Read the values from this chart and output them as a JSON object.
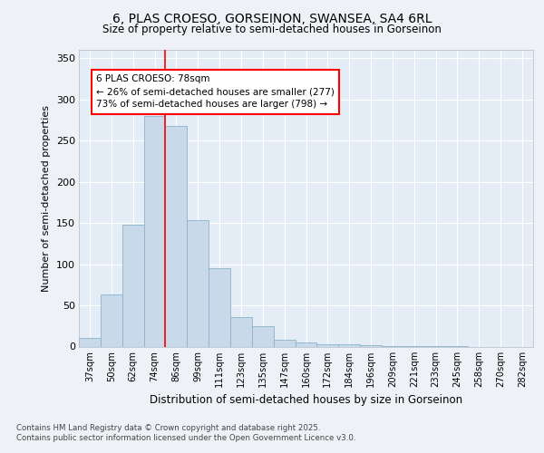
{
  "title_line1": "6, PLAS CROESO, GORSEINON, SWANSEA, SA4 6RL",
  "title_line2": "Size of property relative to semi-detached houses in Gorseinon",
  "xlabel": "Distribution of semi-detached houses by size in Gorseinon",
  "ylabel": "Number of semi-detached properties",
  "categories": [
    "37sqm",
    "50sqm",
    "62sqm",
    "74sqm",
    "86sqm",
    "99sqm",
    "111sqm",
    "123sqm",
    "135sqm",
    "147sqm",
    "160sqm",
    "172sqm",
    "184sqm",
    "196sqm",
    "209sqm",
    "221sqm",
    "233sqm",
    "245sqm",
    "258sqm",
    "270sqm",
    "282sqm"
  ],
  "values": [
    10,
    63,
    148,
    280,
    268,
    153,
    95,
    36,
    25,
    8,
    5,
    3,
    3,
    2,
    1,
    1,
    1,
    1,
    0,
    0,
    0
  ],
  "bar_color": "#c8daea",
  "bar_edge_color": "#8ab4cc",
  "red_line_x": 3.5,
  "annotation_title": "6 PLAS CROESO: 78sqm",
  "annotation_line1": "← 26% of semi-detached houses are smaller (277)",
  "annotation_line2": "73% of semi-detached houses are larger (798) →",
  "ylim": [
    0,
    360
  ],
  "yticks": [
    0,
    50,
    100,
    150,
    200,
    250,
    300,
    350
  ],
  "footer_line1": "Contains HM Land Registry data © Crown copyright and database right 2025.",
  "footer_line2": "Contains public sector information licensed under the Open Government Licence v3.0.",
  "bg_color": "#eef2f7",
  "plot_bg_color": "#e4ecf5"
}
